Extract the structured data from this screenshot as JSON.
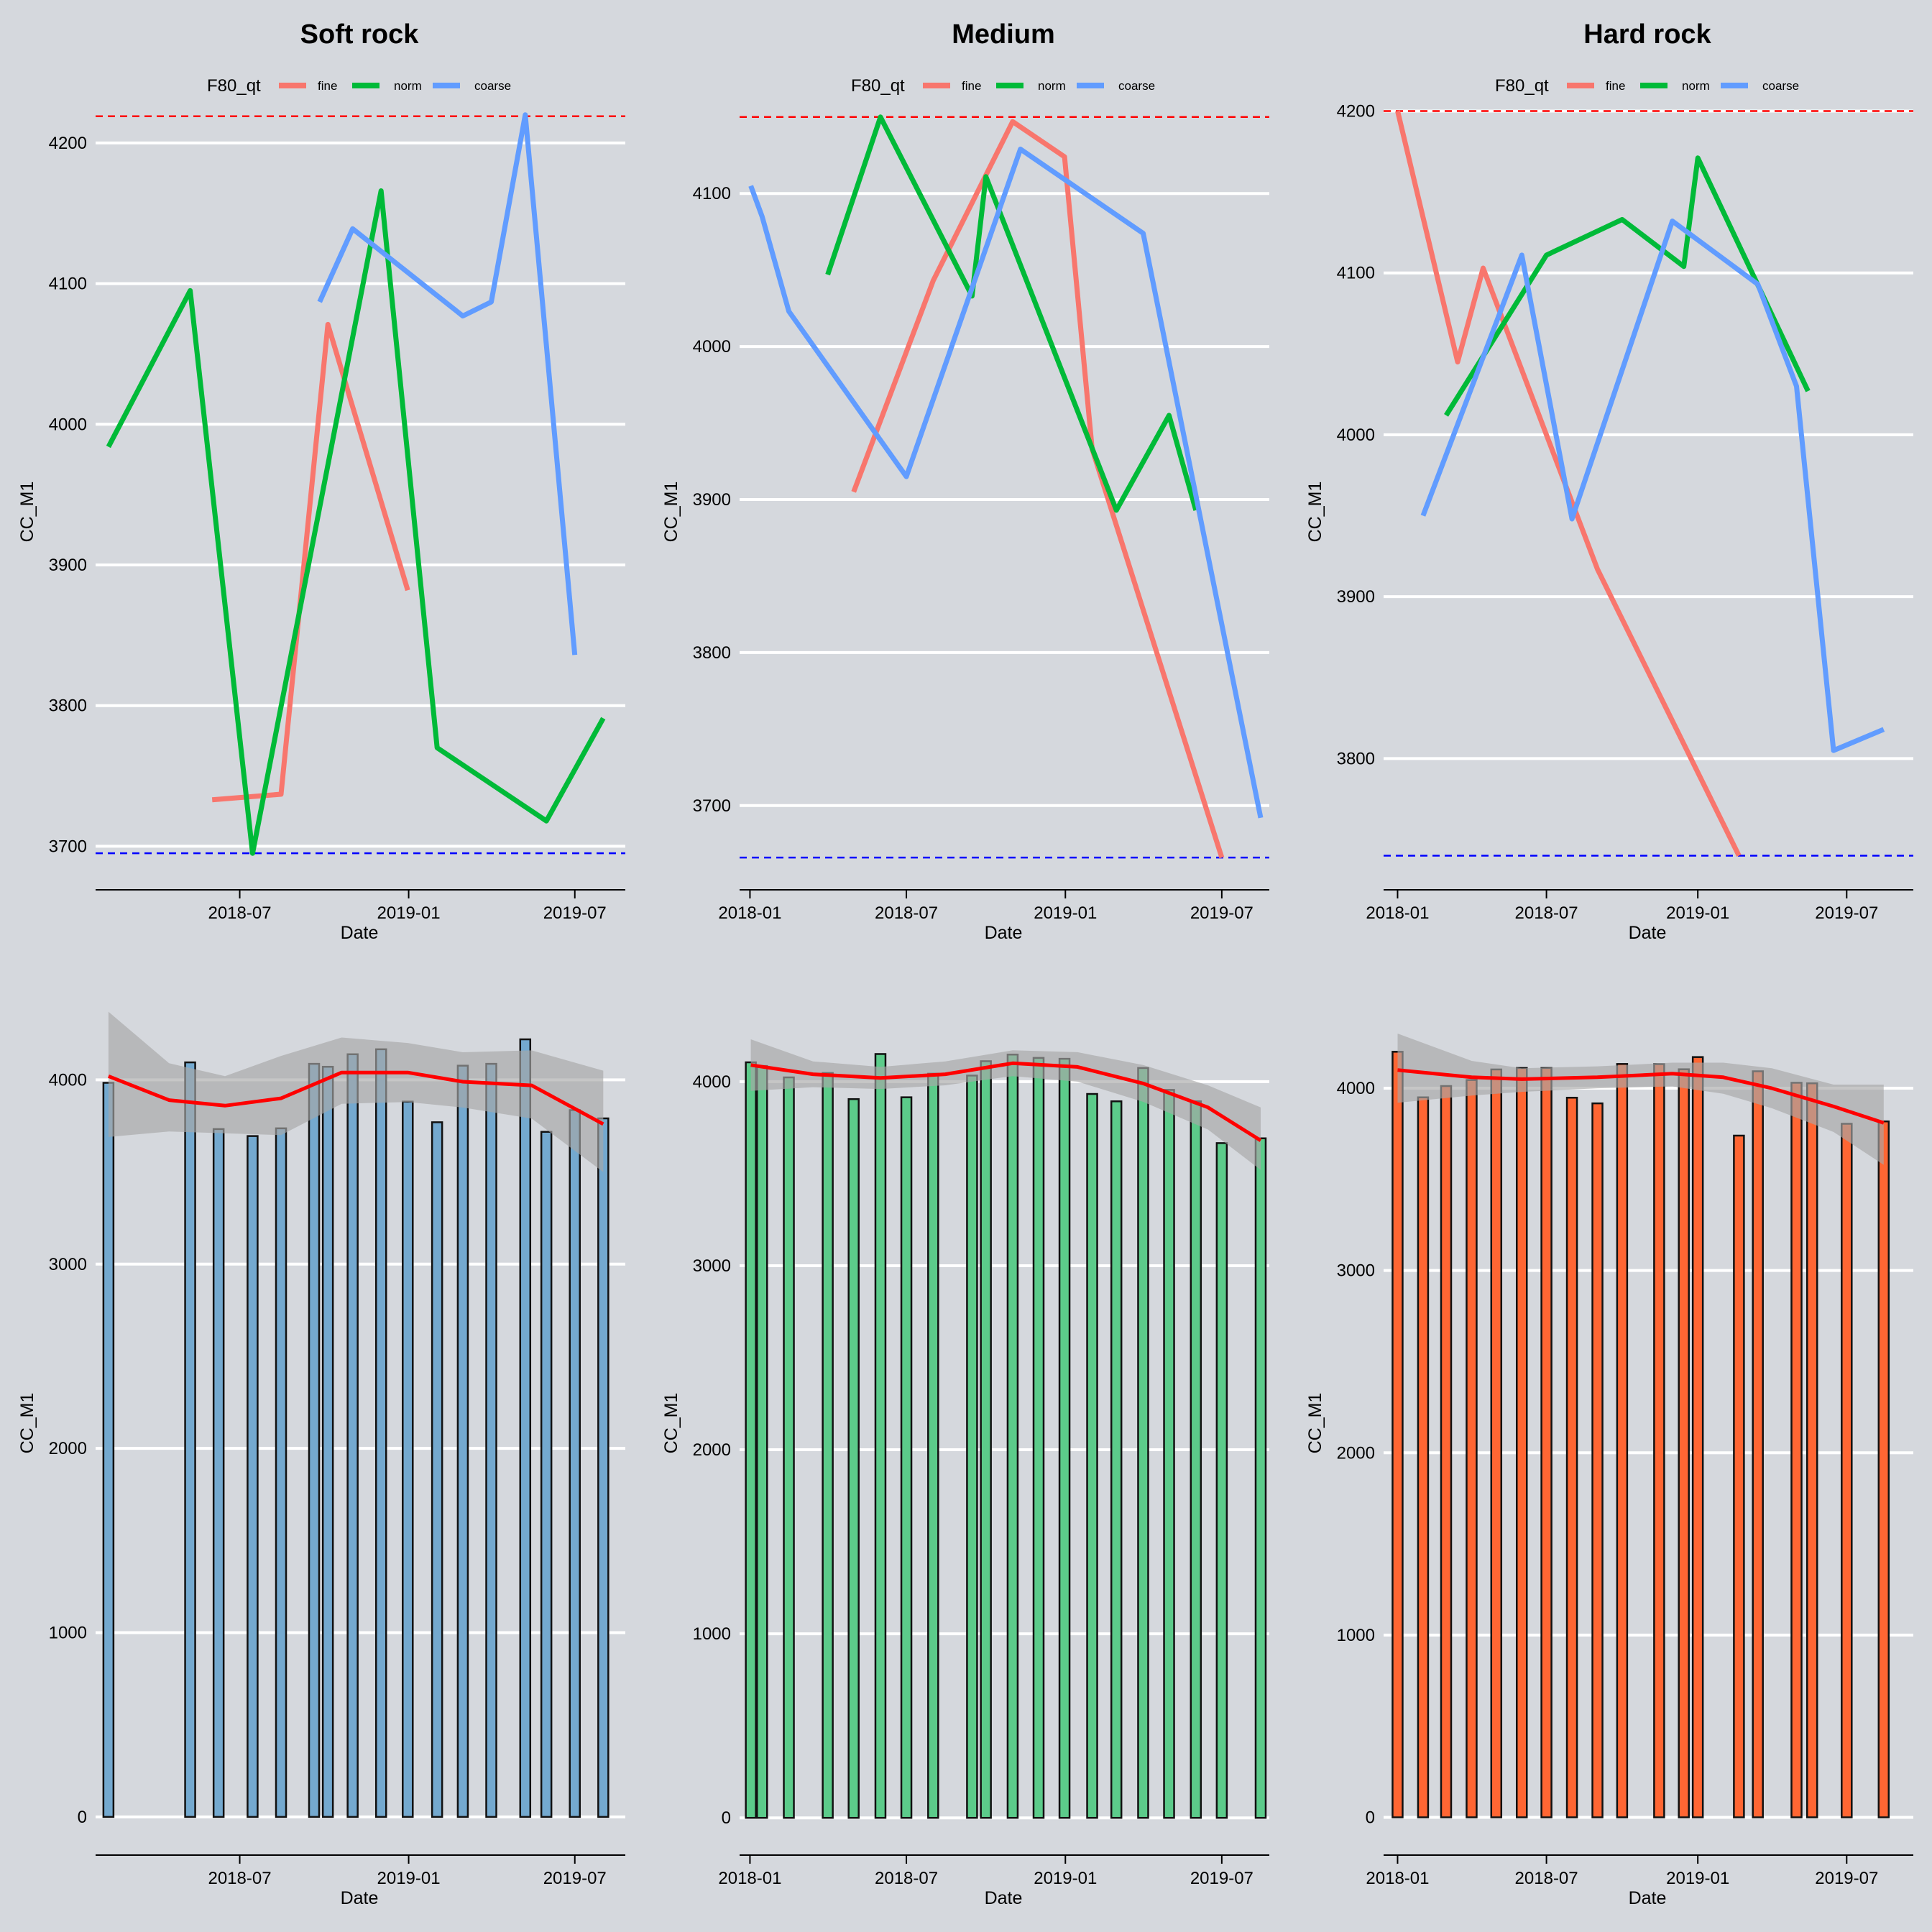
{
  "colors": {
    "background": "#d5d8dd",
    "grid": "#ffffff",
    "fine": "#f8766d",
    "norm": "#00ba38",
    "coarse": "#619cff",
    "upper_limit": "#ff0000",
    "lower_limit": "#0000ff",
    "smooth": "#ff0000",
    "ci_band": "#a8a8a8"
  },
  "chart_data": [
    {
      "type": "line",
      "title": "Soft rock",
      "xlabel": "Date",
      "ylabel": "CC_M1",
      "x_ticks": [
        "2018-07",
        "2019-01",
        "2019-07"
      ],
      "y_ticks": [
        3700,
        3800,
        3900,
        4000,
        4100,
        4200
      ],
      "xlim": [
        "2018-01-25",
        "2019-08-25"
      ],
      "ylim": [
        3668,
        4225
      ],
      "legend": {
        "title": "F80_qt",
        "entries": [
          "fine",
          "norm",
          "coarse"
        ],
        "position": "top"
      },
      "hlines": [
        {
          "y": 4219,
          "color": "red",
          "style": "dashed"
        },
        {
          "y": 3695,
          "color": "blue",
          "style": "dashed"
        }
      ],
      "series": [
        {
          "name": "fine",
          "x": [
            "2018-06-01",
            "2018-08-15",
            "2018-10-05",
            "2018-12-31"
          ],
          "y": [
            3733,
            3737,
            4071,
            3882
          ]
        },
        {
          "name": "norm",
          "x": [
            "2018-02-08",
            "2018-05-08",
            "2018-07-15",
            "2018-12-02",
            "2019-02-01",
            "2019-05-31",
            "2019-08-01"
          ],
          "y": [
            3984,
            4095,
            3695,
            4166,
            3770,
            3718,
            3791
          ]
        },
        {
          "name": "coarse",
          "x": [
            "2018-09-26",
            "2018-11-01",
            "2019-03-01",
            "2019-04-01",
            "2019-05-08",
            "2019-07-01"
          ],
          "y": [
            4087,
            4139,
            4077,
            4087,
            4220,
            3836
          ]
        }
      ]
    },
    {
      "type": "line",
      "title": "Medium",
      "xlabel": "Date",
      "ylabel": "CC_M1",
      "x_ticks": [
        "2018-01",
        "2018-07",
        "2019-01",
        "2019-07"
      ],
      "y_ticks": [
        3700,
        3800,
        3900,
        4000,
        4100
      ],
      "xlim": [
        "2017-12-20",
        "2019-08-25"
      ],
      "ylim": [
        3644,
        4156
      ],
      "legend": {
        "title": "F80_qt",
        "entries": [
          "fine",
          "norm",
          "coarse"
        ],
        "position": "top"
      },
      "hlines": [
        {
          "y": 4150,
          "color": "red",
          "style": "dashed"
        },
        {
          "y": 3666,
          "color": "blue",
          "style": "dashed"
        }
      ],
      "series": [
        {
          "name": "fine",
          "x": [
            "2018-05-01",
            "2018-08-01",
            "2018-11-01",
            "2018-12-31",
            "2019-02-01",
            "2019-07-01"
          ],
          "y": [
            3905,
            4043,
            4147,
            4124,
            3933,
            3666
          ]
        },
        {
          "name": "norm",
          "x": [
            "2018-04-01",
            "2018-06-01",
            "2018-09-15",
            "2018-10-01",
            "2019-03-01",
            "2019-05-01",
            "2019-06-01"
          ],
          "y": [
            4047,
            4150,
            4033,
            4111,
            3893,
            3955,
            3893
          ]
        },
        {
          "name": "coarse",
          "x": [
            "2018-01-02",
            "2018-01-15",
            "2018-02-15",
            "2018-07-01",
            "2018-11-10",
            "2019-04-01",
            "2019-08-15"
          ],
          "y": [
            4105,
            4085,
            4023,
            3915,
            4129,
            4074,
            3692
          ]
        }
      ]
    },
    {
      "type": "line",
      "title": "Hard rock",
      "xlabel": "Date",
      "ylabel": "CC_M1",
      "x_ticks": [
        "2018-01",
        "2018-07",
        "2019-01",
        "2019-07"
      ],
      "y_ticks": [
        3800,
        3900,
        4000,
        4100,
        4200
      ],
      "xlim": [
        "2017-12-15",
        "2019-09-20"
      ],
      "ylim": [
        3718,
        4202
      ],
      "legend": {
        "title": "F80_qt",
        "entries": [
          "fine",
          "norm",
          "coarse"
        ],
        "position": "top"
      },
      "hlines": [
        {
          "y": 4200,
          "color": "red",
          "style": "dashed"
        },
        {
          "y": 3740,
          "color": "blue",
          "style": "dashed"
        }
      ],
      "series": [
        {
          "name": "fine",
          "x": [
            "2018-01-01",
            "2018-03-15",
            "2018-04-15",
            "2018-09-01",
            "2019-02-20"
          ],
          "y": [
            4200,
            4045,
            4103,
            3917,
            3740
          ]
        },
        {
          "name": "norm",
          "x": [
            "2018-03-01",
            "2018-07-01",
            "2018-10-01",
            "2018-12-15",
            "2019-01-01",
            "2019-05-15"
          ],
          "y": [
            4012,
            4111,
            4133,
            4104,
            4171,
            4027
          ]
        },
        {
          "name": "coarse",
          "x": [
            "2018-02-01",
            "2018-06-01",
            "2018-08-01",
            "2018-12-01",
            "2019-03-15",
            "2019-05-01",
            "2019-06-15",
            "2019-08-15"
          ],
          "y": [
            3950,
            4111,
            3948,
            4132,
            4093,
            4030,
            3805,
            3818
          ]
        }
      ]
    },
    {
      "type": "bar",
      "xlabel": "Date",
      "ylabel": "CC_M1",
      "x_ticks": [
        "2018-07",
        "2019-01",
        "2019-07"
      ],
      "y_ticks": [
        0,
        1000,
        2000,
        3000,
        4000
      ],
      "xlim": [
        "2018-01-25",
        "2019-08-25"
      ],
      "ylim": [
        -215,
        4380
      ],
      "bar_color": "#74a9cf",
      "x": [
        "2018-02-08",
        "2018-05-08",
        "2018-06-08",
        "2018-07-15",
        "2018-08-15",
        "2018-09-20",
        "2018-10-05",
        "2018-11-01",
        "2018-12-02",
        "2018-12-31",
        "2019-02-01",
        "2019-03-01",
        "2019-04-01",
        "2019-05-08",
        "2019-05-31",
        "2019-07-01",
        "2019-08-01"
      ],
      "values": [
        3984,
        4095,
        3733,
        3695,
        3737,
        4087,
        4071,
        4139,
        4166,
        3882,
        3770,
        4077,
        4087,
        4220,
        3718,
        3836,
        3791
      ],
      "smooth": {
        "x": [
          "2018-02-08",
          "2018-04-15",
          "2018-06-15",
          "2018-08-15",
          "2018-10-20",
          "2018-12-31",
          "2019-03-01",
          "2019-05-15",
          "2019-08-01"
        ],
        "y": [
          4020,
          3890,
          3860,
          3900,
          4040,
          4040,
          3990,
          3970,
          3760
        ],
        "ci_upper": [
          4370,
          4090,
          4020,
          4130,
          4230,
          4200,
          4150,
          4160,
          4050
        ],
        "ci_lower": [
          3690,
          3720,
          3710,
          3700,
          3870,
          3880,
          3850,
          3790,
          3500
        ]
      }
    },
    {
      "type": "bar",
      "xlabel": "Date",
      "ylabel": "CC_M1",
      "x_ticks": [
        "2018-01",
        "2018-07",
        "2019-01",
        "2019-07"
      ],
      "y_ticks": [
        0,
        1000,
        2000,
        3000,
        4000
      ],
      "xlim": [
        "2017-12-20",
        "2019-08-25"
      ],
      "ylim": [
        -210,
        4390
      ],
      "bar_color": "#5ccb8a",
      "x": [
        "2018-01-02",
        "2018-01-15",
        "2018-02-15",
        "2018-04-01",
        "2018-05-01",
        "2018-06-01",
        "2018-07-01",
        "2018-08-01",
        "2018-09-15",
        "2018-10-01",
        "2018-11-01",
        "2018-12-01",
        "2018-12-31",
        "2019-02-01",
        "2019-03-01",
        "2019-04-01",
        "2019-05-01",
        "2019-06-01",
        "2019-07-01",
        "2019-08-15"
      ],
      "values": [
        4105,
        4085,
        4023,
        4047,
        3905,
        4150,
        3915,
        4043,
        4033,
        4111,
        4147,
        4129,
        4124,
        3933,
        3893,
        4074,
        3955,
        3893,
        3666,
        3692
      ],
      "smooth": {
        "x": [
          "2018-01-02",
          "2018-03-15",
          "2018-06-01",
          "2018-08-15",
          "2018-11-01",
          "2019-01-15",
          "2019-04-01",
          "2019-06-15",
          "2019-08-15"
        ],
        "y": [
          4090,
          4040,
          4020,
          4040,
          4100,
          4080,
          3990,
          3860,
          3680
        ],
        "ci_upper": [
          4230,
          4110,
          4080,
          4110,
          4170,
          4160,
          4090,
          3980,
          3860
        ],
        "ci_lower": [
          3950,
          3970,
          3960,
          3980,
          4030,
          4000,
          3890,
          3740,
          3520
        ]
      }
    },
    {
      "type": "bar",
      "xlabel": "Date",
      "ylabel": "CC_M1",
      "x_ticks": [
        "2018-01",
        "2018-07",
        "2019-01",
        "2019-07"
      ],
      "y_ticks": [
        0,
        1000,
        2000,
        3000,
        4000
      ],
      "xlim": [
        "2017-12-15",
        "2019-09-20"
      ],
      "ylim": [
        -215,
        4430
      ],
      "bar_color": "#ff6633",
      "x": [
        "2018-01-01",
        "2018-02-01",
        "2018-03-01",
        "2018-04-01",
        "2018-05-01",
        "2018-06-01",
        "2018-07-01",
        "2018-08-01",
        "2018-09-01",
        "2018-10-01",
        "2018-11-15",
        "2018-12-15",
        "2019-01-01",
        "2019-02-20",
        "2019-03-15",
        "2019-05-01",
        "2019-05-20",
        "2019-07-01",
        "2019-08-15"
      ],
      "values": [
        4200,
        3950,
        4012,
        4045,
        4103,
        4111,
        4111,
        3948,
        3917,
        4133,
        4132,
        4104,
        4171,
        3740,
        4093,
        4030,
        4027,
        3805,
        3818
      ],
      "smooth": {
        "x": [
          "2018-01-01",
          "2018-04-01",
          "2018-06-01",
          "2018-09-01",
          "2018-12-01",
          "2019-02-01",
          "2019-04-01",
          "2019-06-15",
          "2019-08-15"
        ],
        "y": [
          4100,
          4060,
          4050,
          4060,
          4080,
          4060,
          4000,
          3900,
          3810
        ],
        "ci_upper": [
          4300,
          4150,
          4110,
          4120,
          4140,
          4140,
          4110,
          4020,
          4020
        ],
        "ci_lower": [
          3920,
          3960,
          3980,
          4000,
          4010,
          3970,
          3890,
          3760,
          3580
        ]
      }
    }
  ]
}
